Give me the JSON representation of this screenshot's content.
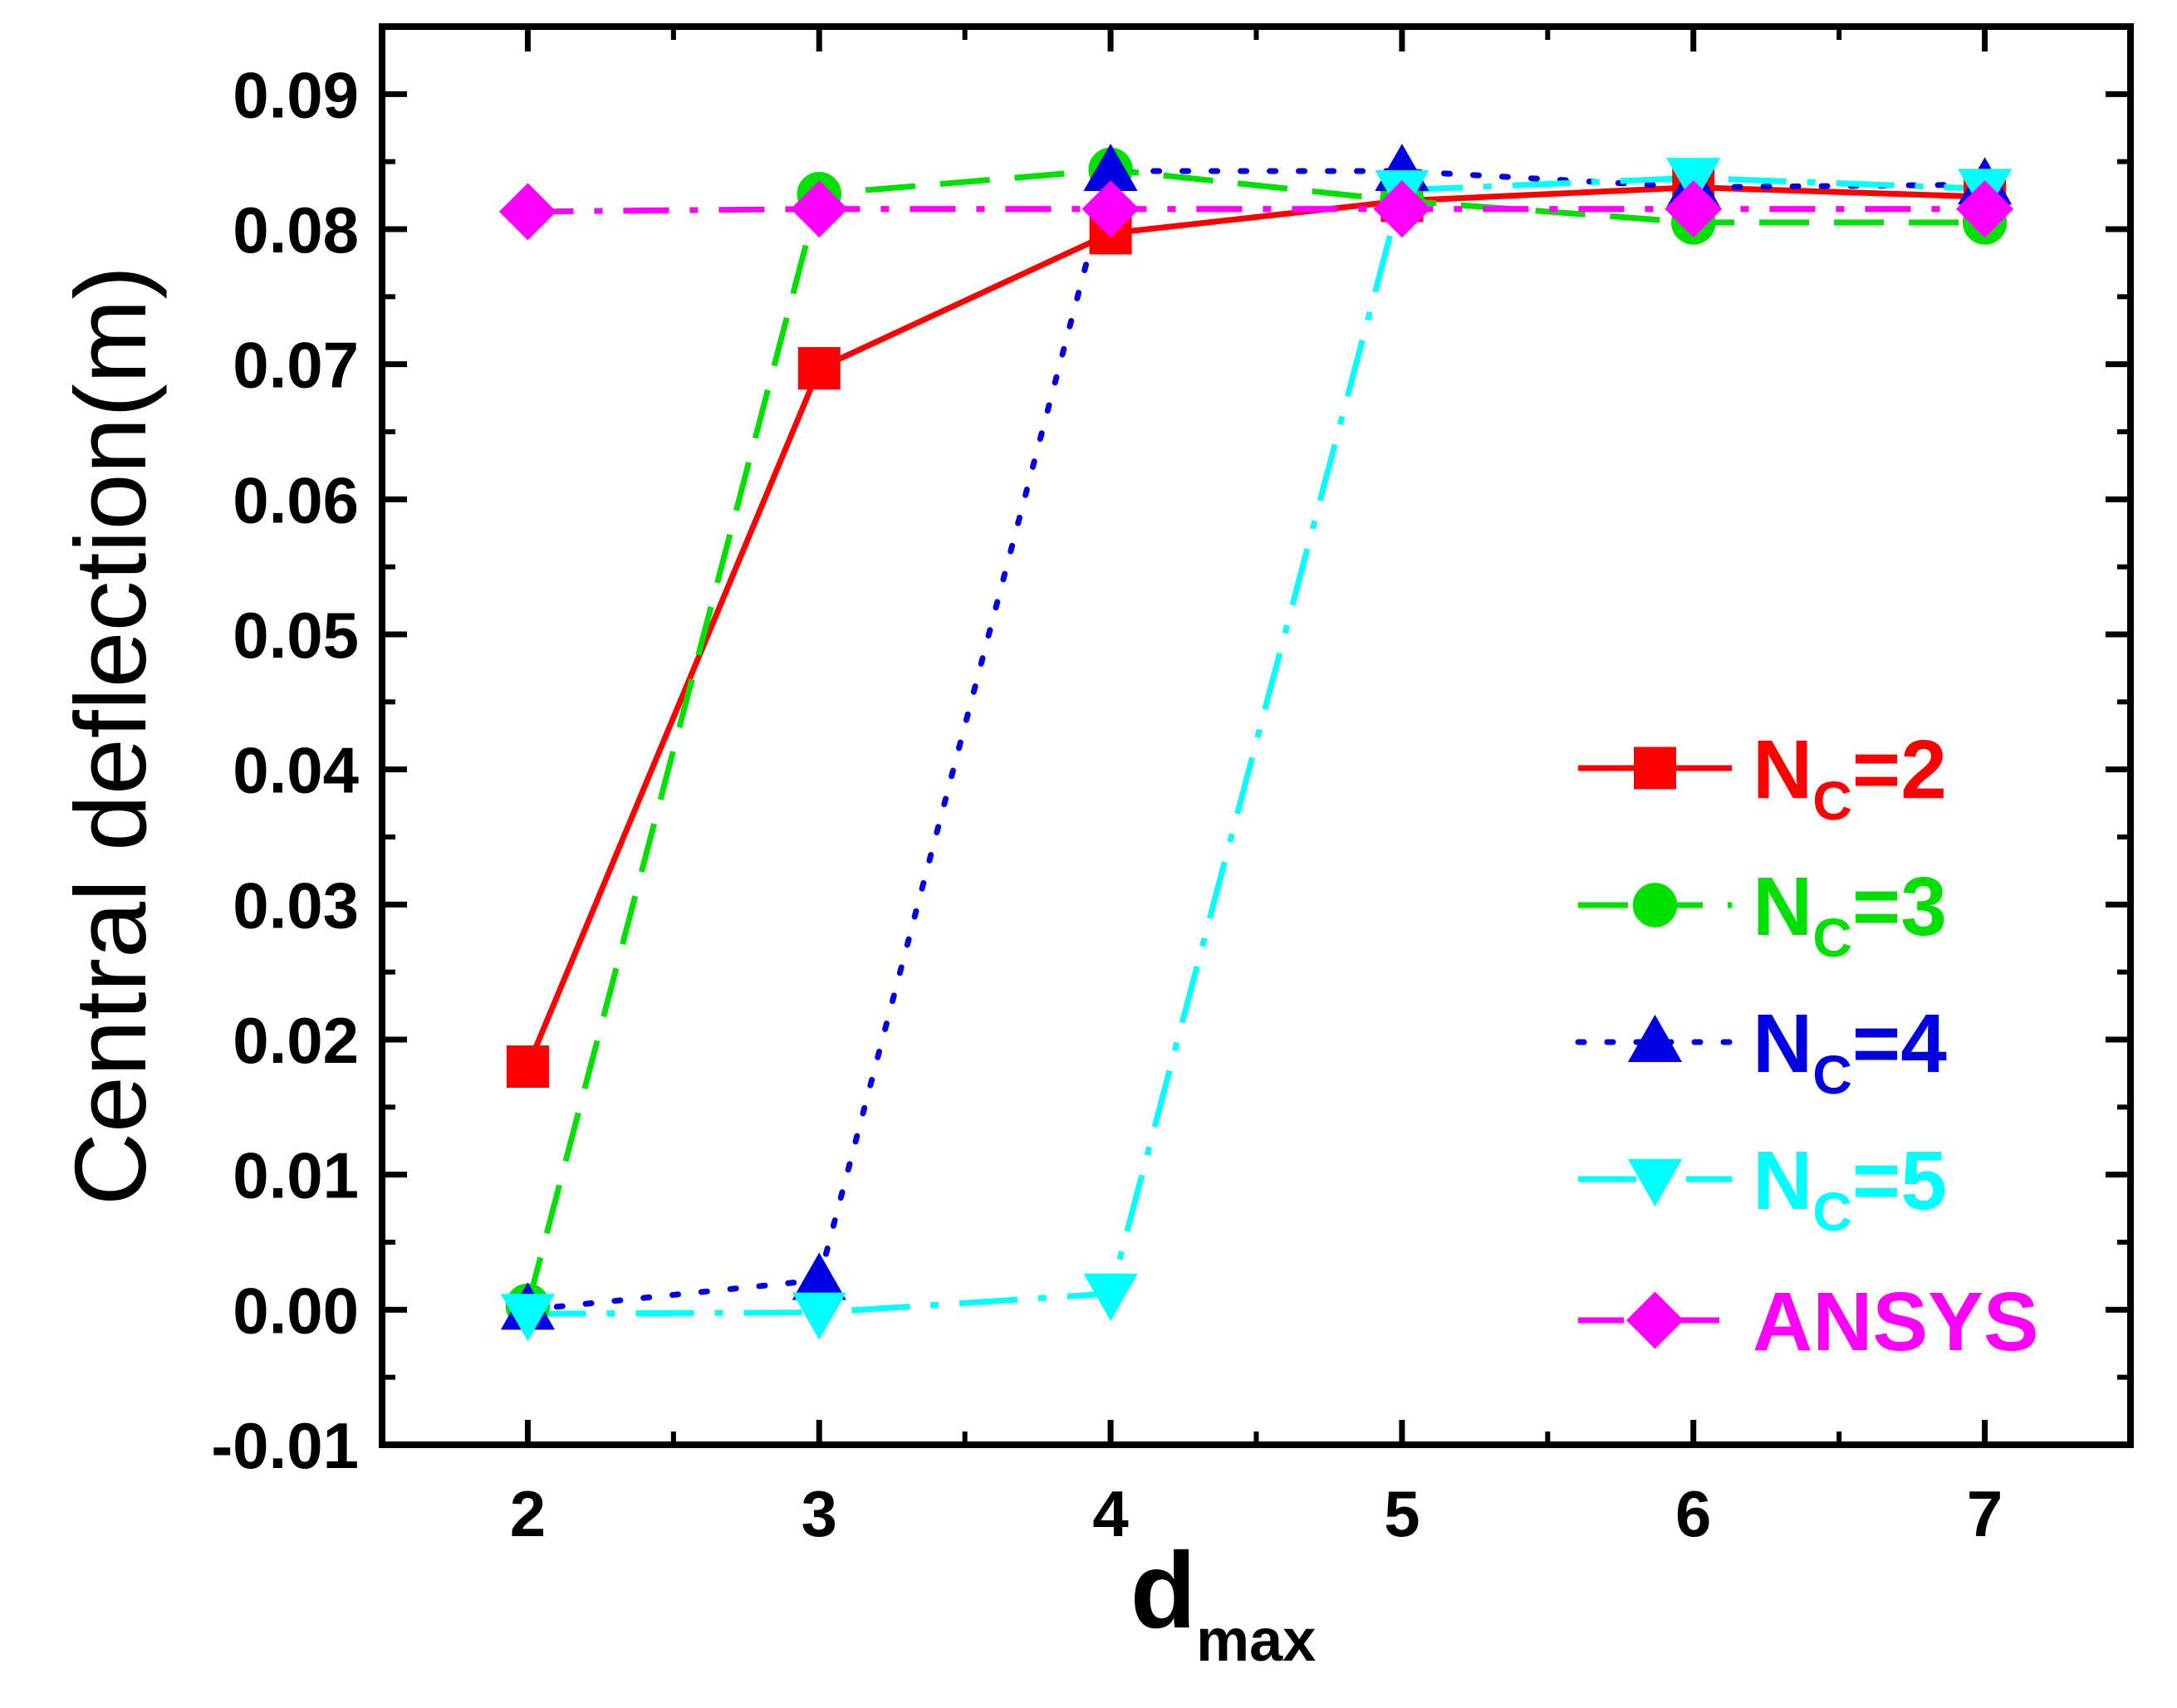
{
  "chart_data": {
    "type": "line",
    "title": "",
    "xlabel": "d",
    "xlabel_sub": "max",
    "ylabel": "Central deflection(m)",
    "xlim": [
      1.5,
      7.5
    ],
    "ylim": [
      -0.01,
      0.095
    ],
    "grid": false,
    "legend_position": "center-right",
    "x_ticks": [
      2,
      3,
      4,
      5,
      6,
      7
    ],
    "x_tick_labels": [
      "2",
      "3",
      "4",
      "5",
      "6",
      "7"
    ],
    "y_ticks": [
      -0.01,
      0.0,
      0.01,
      0.02,
      0.03,
      0.04,
      0.05,
      0.06,
      0.07,
      0.08,
      0.09
    ],
    "y_tick_labels": [
      "-0.01",
      "0.00",
      "0.01",
      "0.02",
      "0.03",
      "0.04",
      "0.05",
      "0.06",
      "0.07",
      "0.08",
      "0.09"
    ],
    "x": [
      2,
      3,
      4,
      5,
      6,
      7
    ],
    "series": [
      {
        "name": "N",
        "subscript": "C",
        "suffix": "=2",
        "color": "#ff0000",
        "marker": "square",
        "dash": "",
        "values": [
          0.018,
          0.0697,
          0.0797,
          0.0821,
          0.0831,
          0.0824
        ]
      },
      {
        "name": "N",
        "subscript": "C",
        "suffix": "=3",
        "color": "#00e000",
        "marker": "circle",
        "dash": "60,30",
        "values": [
          0.0003,
          0.0826,
          0.0844,
          0.0821,
          0.0805,
          0.0805
        ]
      },
      {
        "name": "N",
        "subscript": "C",
        "suffix": "=4",
        "color": "#0000e0",
        "marker": "triangle-up",
        "dash": "7,28",
        "values": [
          0.0,
          0.0022,
          0.0843,
          0.0843,
          0.0831,
          0.0833
        ]
      },
      {
        "name": "N",
        "subscript": "C",
        "suffix": "=5",
        "color": "#00ffff",
        "marker": "triangle-down",
        "dash": "70,25,10,25",
        "values": [
          -0.0003,
          -0.0002,
          0.0012,
          0.0829,
          0.0838,
          0.083
        ]
      },
      {
        "name": "ANSYS",
        "subscript": "",
        "suffix": "",
        "color": "#ff00ff",
        "marker": "diamond",
        "dash": "55,25,10,25",
        "values": [
          0.0813,
          0.0815,
          0.0815,
          0.0815,
          0.0815,
          0.0815
        ]
      }
    ]
  }
}
